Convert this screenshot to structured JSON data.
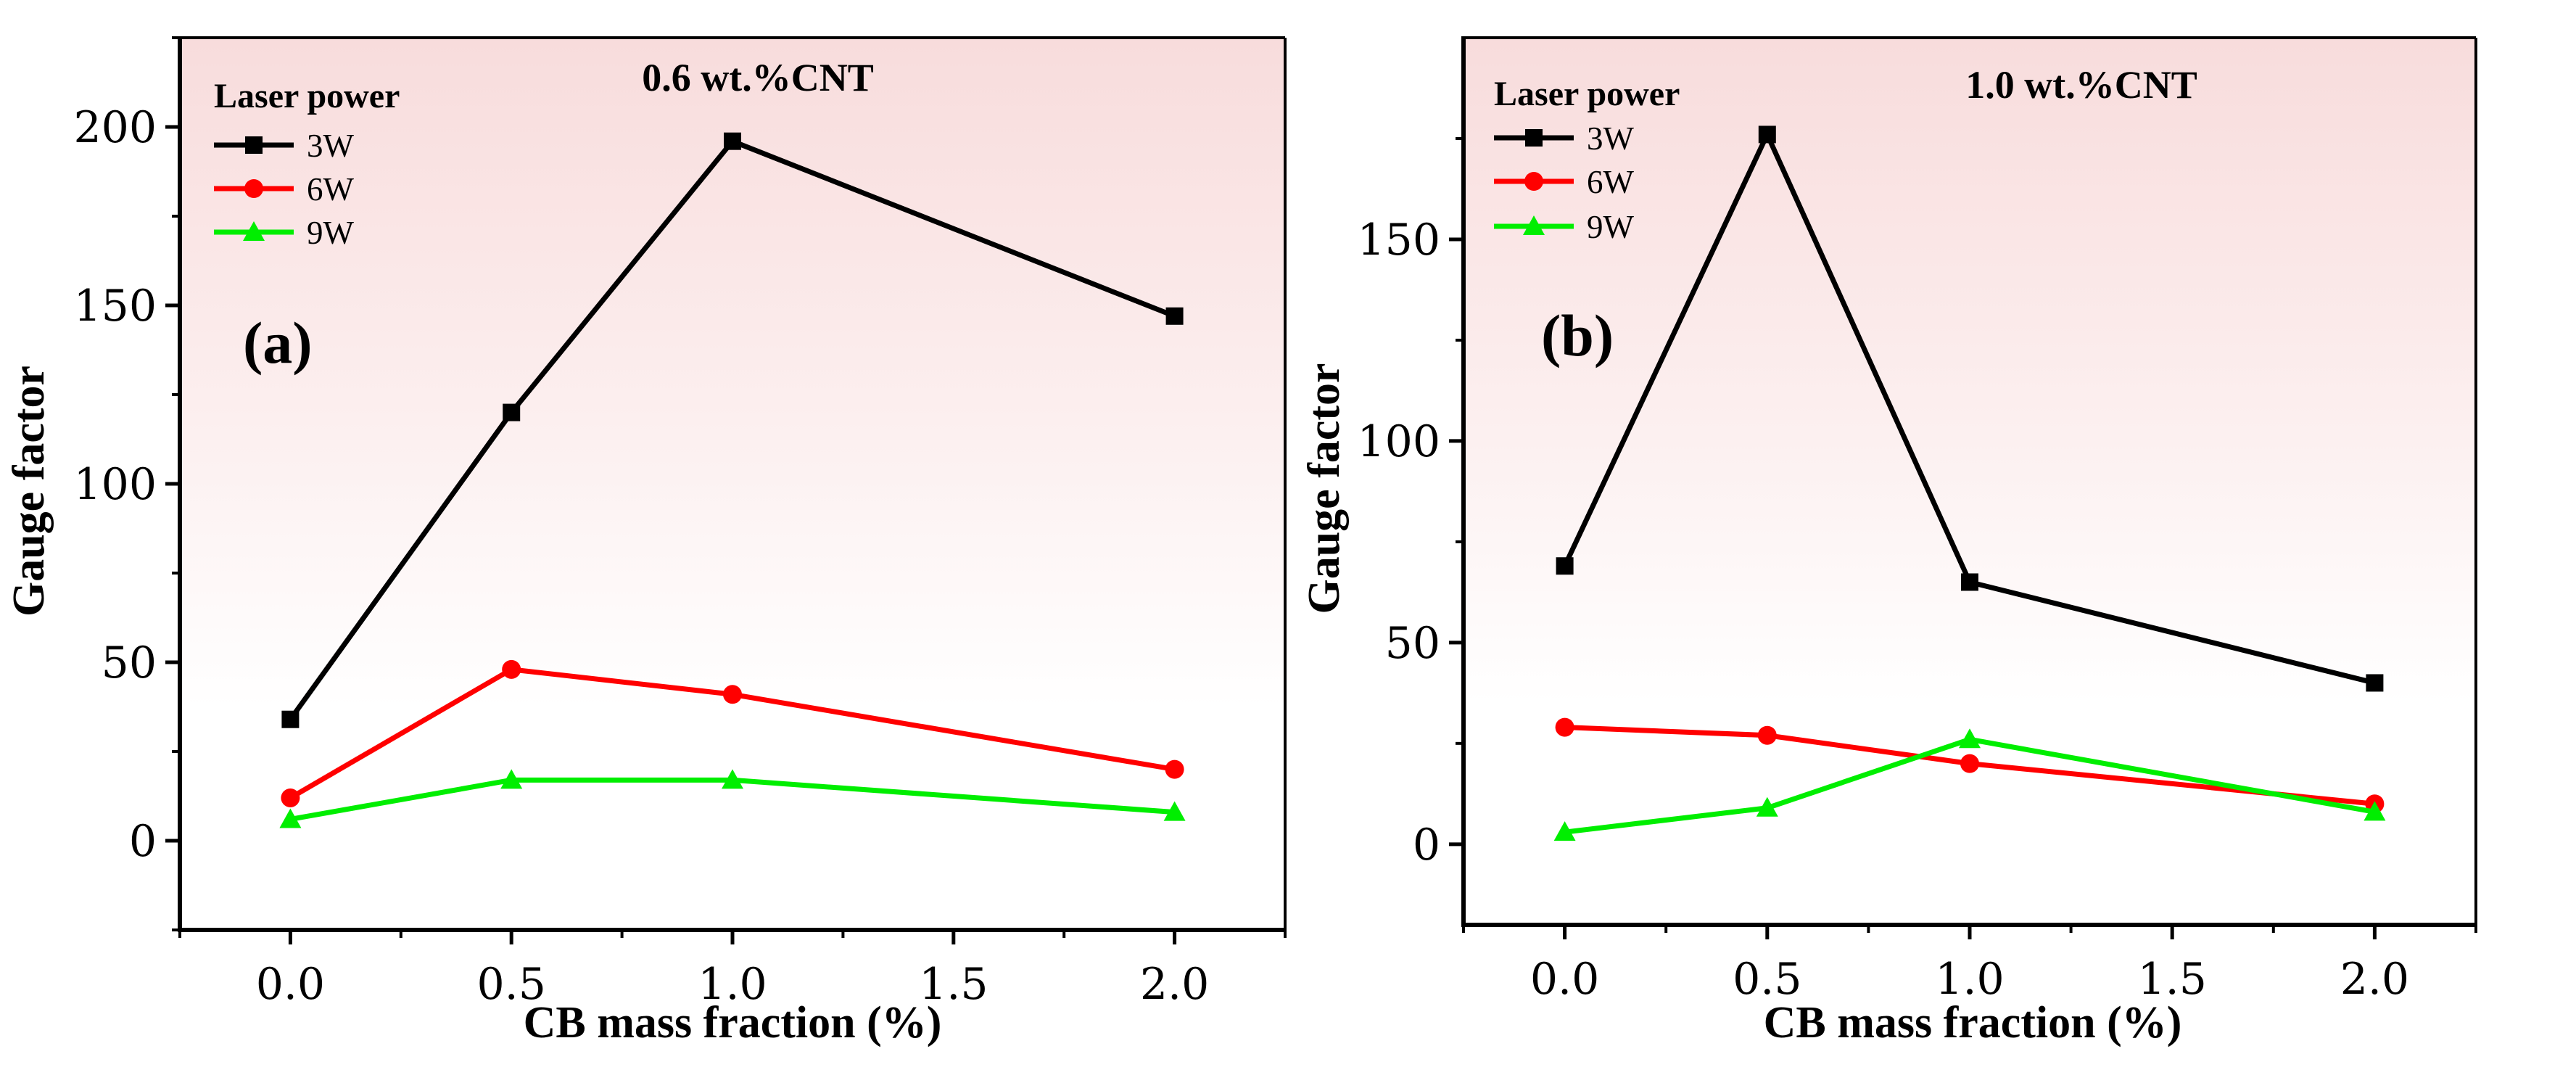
{
  "chart_data": [
    {
      "type": "line",
      "title": "0.6 wt.%CNT",
      "panel_label": "(a)",
      "xlabel": "CB mass fraction (%)",
      "ylabel": "Gauge factor",
      "xlim": [
        -0.25,
        2.25
      ],
      "ylim": [
        -25,
        225
      ],
      "x_ticks": [
        0.0,
        0.5,
        1.0,
        1.5,
        2.0
      ],
      "x_tick_labels": [
        "0.0",
        "0.5",
        "1.0",
        "1.5",
        "2.0"
      ],
      "y_ticks": [
        0,
        50,
        100,
        150,
        200
      ],
      "y_tick_labels": [
        "0",
        "50",
        "100",
        "150",
        "200"
      ],
      "background": "gradient-pink-top",
      "legend": {
        "title": "Laser power",
        "position": "top-left"
      },
      "series": [
        {
          "name": "3W",
          "color": "#000000",
          "marker": "square",
          "x": [
            0,
            0.5,
            1,
            2
          ],
          "values": [
            34,
            120,
            196,
            147
          ]
        },
        {
          "name": "6W",
          "color": "#ff0000",
          "marker": "circle",
          "x": [
            0,
            0.5,
            1,
            2
          ],
          "values": [
            12,
            48,
            41,
            20
          ]
        },
        {
          "name": "9W",
          "color": "#00ee00",
          "marker": "triangle",
          "x": [
            0,
            0.5,
            1,
            2
          ],
          "values": [
            6,
            17,
            17,
            8
          ]
        }
      ]
    },
    {
      "type": "line",
      "title": "1.0 wt.%CNT",
      "panel_label": "(b)",
      "xlabel": "CB mass fraction (%)",
      "ylabel": "Gauge factor",
      "xlim": [
        -0.25,
        2.25
      ],
      "ylim": [
        -20,
        200
      ],
      "x_ticks": [
        0.0,
        0.5,
        1.0,
        1.5,
        2.0
      ],
      "x_tick_labels": [
        "0.0",
        "0.5",
        "1.0",
        "1.5",
        "2.0"
      ],
      "y_ticks": [
        0,
        50,
        100,
        150
      ],
      "y_tick_labels": [
        "0",
        "50",
        "100",
        "150"
      ],
      "background": "gradient-pink-top",
      "legend": {
        "title": "Laser power",
        "position": "top-left"
      },
      "series": [
        {
          "name": "3W",
          "color": "#000000",
          "marker": "square",
          "x": [
            0,
            0.5,
            1,
            2
          ],
          "values": [
            69,
            176,
            65,
            40
          ]
        },
        {
          "name": "6W",
          "color": "#ff0000",
          "marker": "circle",
          "x": [
            0,
            0.5,
            1,
            2
          ],
          "values": [
            29,
            27,
            20,
            10
          ]
        },
        {
          "name": "9W",
          "color": "#00ee00",
          "marker": "triangle",
          "x": [
            0,
            0.5,
            1,
            2
          ],
          "values": [
            3,
            9,
            26,
            8
          ]
        }
      ]
    }
  ]
}
